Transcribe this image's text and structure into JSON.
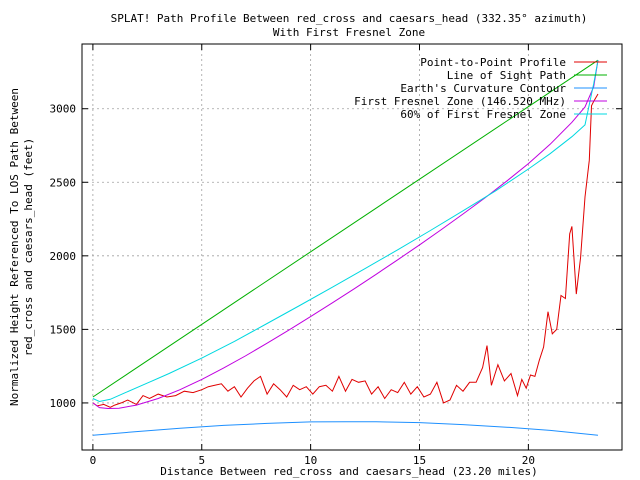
{
  "chart_data": {
    "type": "line",
    "title": "SPLAT! Path Profile Between red_cross and caesars_head (332.35° azimuth)",
    "subtitle": "With First Fresnel Zone",
    "xlabel": "Distance Between red_cross and caesars_head (23.20 miles)",
    "ylabel": [
      "Normalized Height Referenced To LOS Path Between",
      "red_cross and caesars_head (feet)"
    ],
    "xlim": [
      -0.5,
      24.3
    ],
    "ylim": [
      680,
      3440
    ],
    "xticks": [
      0,
      5,
      10,
      15,
      20
    ],
    "yticks": [
      1000,
      1500,
      2000,
      2500,
      3000
    ],
    "grid": true,
    "legend_position": "top-right",
    "series": [
      {
        "name": "Point-to-Point Profile",
        "color": "#e00000",
        "x": [
          0,
          0.2,
          0.5,
          0.8,
          1.0,
          1.3,
          1.6,
          2.0,
          2.3,
          2.6,
          3.0,
          3.4,
          3.8,
          4.2,
          4.6,
          5.0,
          5.3,
          5.6,
          5.9,
          6.2,
          6.5,
          6.8,
          7.1,
          7.4,
          7.7,
          8.0,
          8.3,
          8.6,
          8.9,
          9.2,
          9.5,
          9.8,
          10.1,
          10.4,
          10.7,
          11.0,
          11.3,
          11.6,
          11.9,
          12.2,
          12.5,
          12.8,
          13.1,
          13.4,
          13.7,
          14.0,
          14.3,
          14.6,
          14.9,
          15.2,
          15.5,
          15.8,
          16.1,
          16.4,
          16.7,
          17.0,
          17.3,
          17.6,
          17.9,
          18.1,
          18.3,
          18.6,
          18.9,
          19.2,
          19.5,
          19.7,
          19.9,
          20.1,
          20.3,
          20.5,
          20.7,
          20.9,
          21.1,
          21.3,
          21.5,
          21.7,
          21.9,
          22.0,
          22.2,
          22.4,
          22.6,
          22.8,
          22.9,
          23.0,
          23.2
        ],
        "y": [
          1000,
          980,
          990,
          970,
          985,
          1000,
          1020,
          990,
          1050,
          1030,
          1060,
          1040,
          1050,
          1080,
          1070,
          1090,
          1110,
          1120,
          1130,
          1080,
          1110,
          1040,
          1100,
          1150,
          1180,
          1060,
          1130,
          1090,
          1040,
          1120,
          1090,
          1110,
          1060,
          1110,
          1120,
          1080,
          1180,
          1080,
          1160,
          1140,
          1150,
          1060,
          1110,
          1030,
          1090,
          1070,
          1140,
          1060,
          1110,
          1040,
          1060,
          1140,
          1000,
          1020,
          1120,
          1080,
          1140,
          1140,
          1240,
          1390,
          1120,
          1260,
          1150,
          1200,
          1050,
          1160,
          1100,
          1190,
          1180,
          1290,
          1380,
          1620,
          1470,
          1500,
          1730,
          1710,
          2150,
          2200,
          1740,
          1990,
          2400,
          2650,
          3020,
          3050,
          3100
        ]
      },
      {
        "name": "Line of Sight Path",
        "color": "#00b000",
        "x": [
          0,
          23.2
        ],
        "y": [
          1040,
          3330
        ]
      },
      {
        "name": "Earth's Curvature Contour",
        "color": "#1e90ff",
        "x": [
          0,
          2,
          4,
          6,
          8,
          10,
          11.6,
          13,
          15,
          17,
          19,
          21,
          23.2
        ],
        "y": [
          780,
          805,
          828,
          847,
          861,
          871,
          872,
          872,
          866,
          853,
          835,
          813,
          780
        ]
      },
      {
        "name": "First Fresnel Zone (146.520 MHz)",
        "color": "#c000e0",
        "x": [
          0,
          0.3,
          0.7,
          1.2,
          2,
          3,
          4,
          5,
          6,
          7,
          8,
          9,
          10,
          11,
          12,
          13,
          14,
          15,
          16,
          17,
          18,
          19,
          20,
          21,
          22,
          22.6,
          23.0,
          23.2
        ],
        "y": [
          1000,
          968,
          962,
          964,
          985,
          1030,
          1090,
          1160,
          1237,
          1319,
          1406,
          1495,
          1587,
          1681,
          1776,
          1874,
          1973,
          2074,
          2178,
          2284,
          2393,
          2507,
          2627,
          2758,
          2908,
          3012,
          3150,
          3330
        ]
      },
      {
        "name": "60% of First Fresnel Zone",
        "color": "#00d8e0",
        "x": [
          0,
          0.3,
          0.8,
          1.5,
          2.5,
          3.5,
          5,
          6.5,
          8,
          9.5,
          11,
          12.5,
          14,
          15.5,
          17,
          18.5,
          20,
          21,
          22,
          22.6,
          23.0,
          23.2
        ],
        "y": [
          1030,
          1010,
          1025,
          1070,
          1135,
          1200,
          1305,
          1418,
          1540,
          1662,
          1787,
          1913,
          2041,
          2172,
          2306,
          2442,
          2590,
          2694,
          2810,
          2890,
          3170,
          3330
        ]
      }
    ]
  }
}
